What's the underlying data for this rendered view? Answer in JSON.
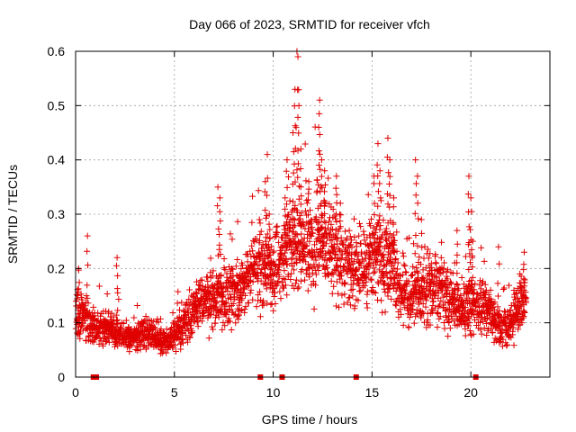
{
  "chart_data": {
    "type": "scatter",
    "title": "Day 066 of 2023, SRMTID for receiver vfch",
    "xlabel": "GPS time / hours",
    "ylabel": "SRMTID / TECUs",
    "xlim": [
      0,
      24
    ],
    "ylim": [
      0,
      0.6
    ],
    "grid": true,
    "marker": "+",
    "color": "#e00000",
    "x_ticks": [
      0,
      5,
      10,
      15,
      20
    ],
    "x_tick_labels": [
      "0",
      "5",
      "10",
      "15",
      "20"
    ],
    "y_ticks": [
      0,
      0.1,
      0.2,
      0.3,
      0.4,
      0.5,
      0.6
    ],
    "y_tick_labels": [
      "0",
      "0.1",
      "0.2",
      "0.3",
      "0.4",
      "0.5",
      "0.6"
    ],
    "trend": [
      [
        0.0,
        0.12
      ],
      [
        0.5,
        0.11
      ],
      [
        1.0,
        0.09
      ],
      [
        1.5,
        0.09
      ],
      [
        2.0,
        0.08
      ],
      [
        2.5,
        0.075
      ],
      [
        3.0,
        0.075
      ],
      [
        3.5,
        0.08
      ],
      [
        4.0,
        0.075
      ],
      [
        4.5,
        0.065
      ],
      [
        5.0,
        0.075
      ],
      [
        5.5,
        0.1
      ],
      [
        6.0,
        0.125
      ],
      [
        6.5,
        0.145
      ],
      [
        7.0,
        0.15
      ],
      [
        7.5,
        0.15
      ],
      [
        8.0,
        0.155
      ],
      [
        8.5,
        0.17
      ],
      [
        9.0,
        0.2
      ],
      [
        9.5,
        0.2
      ],
      [
        10.0,
        0.18
      ],
      [
        10.5,
        0.22
      ],
      [
        11.0,
        0.25
      ],
      [
        11.5,
        0.24
      ],
      [
        12.0,
        0.24
      ],
      [
        12.5,
        0.25
      ],
      [
        13.0,
        0.23
      ],
      [
        13.5,
        0.21
      ],
      [
        14.0,
        0.2
      ],
      [
        14.5,
        0.2
      ],
      [
        15.0,
        0.22
      ],
      [
        15.5,
        0.22
      ],
      [
        16.0,
        0.21
      ],
      [
        16.5,
        0.16
      ],
      [
        17.0,
        0.15
      ],
      [
        17.5,
        0.16
      ],
      [
        18.0,
        0.17
      ],
      [
        18.5,
        0.16
      ],
      [
        19.0,
        0.14
      ],
      [
        19.5,
        0.13
      ],
      [
        20.0,
        0.13
      ],
      [
        20.5,
        0.13
      ],
      [
        21.0,
        0.12
      ],
      [
        21.5,
        0.09
      ],
      [
        22.0,
        0.1
      ],
      [
        22.5,
        0.13
      ],
      [
        22.8,
        0.15
      ]
    ],
    "spikes": [
      [
        0.15,
        0.2
      ],
      [
        0.6,
        0.26
      ],
      [
        2.1,
        0.22
      ],
      [
        7.2,
        0.35
      ],
      [
        7.3,
        0.33
      ],
      [
        9.3,
        0.29
      ],
      [
        9.6,
        0.36
      ],
      [
        9.7,
        0.41
      ],
      [
        9.8,
        0.3
      ],
      [
        10.6,
        0.33
      ],
      [
        10.7,
        0.4
      ],
      [
        11.0,
        0.45
      ],
      [
        11.1,
        0.53
      ],
      [
        11.2,
        0.6
      ],
      [
        11.25,
        0.59
      ],
      [
        11.3,
        0.5
      ],
      [
        11.4,
        0.42
      ],
      [
        11.8,
        0.36
      ],
      [
        12.3,
        0.46
      ],
      [
        12.35,
        0.51
      ],
      [
        12.45,
        0.4
      ],
      [
        12.6,
        0.38
      ],
      [
        13.2,
        0.37
      ],
      [
        13.4,
        0.32
      ],
      [
        15.1,
        0.37
      ],
      [
        15.3,
        0.43
      ],
      [
        15.4,
        0.38
      ],
      [
        15.8,
        0.44
      ],
      [
        15.9,
        0.4
      ],
      [
        16.1,
        0.33
      ],
      [
        17.2,
        0.4
      ],
      [
        17.3,
        0.37
      ],
      [
        17.5,
        0.29
      ],
      [
        19.3,
        0.27
      ],
      [
        19.9,
        0.37
      ],
      [
        20.0,
        0.33
      ],
      [
        20.1,
        0.25
      ],
      [
        21.4,
        0.24
      ],
      [
        22.7,
        0.23
      ]
    ],
    "data_gap_markers_x": [
      0.9,
      1.05,
      9.35,
      10.45,
      14.2,
      20.25
    ]
  }
}
